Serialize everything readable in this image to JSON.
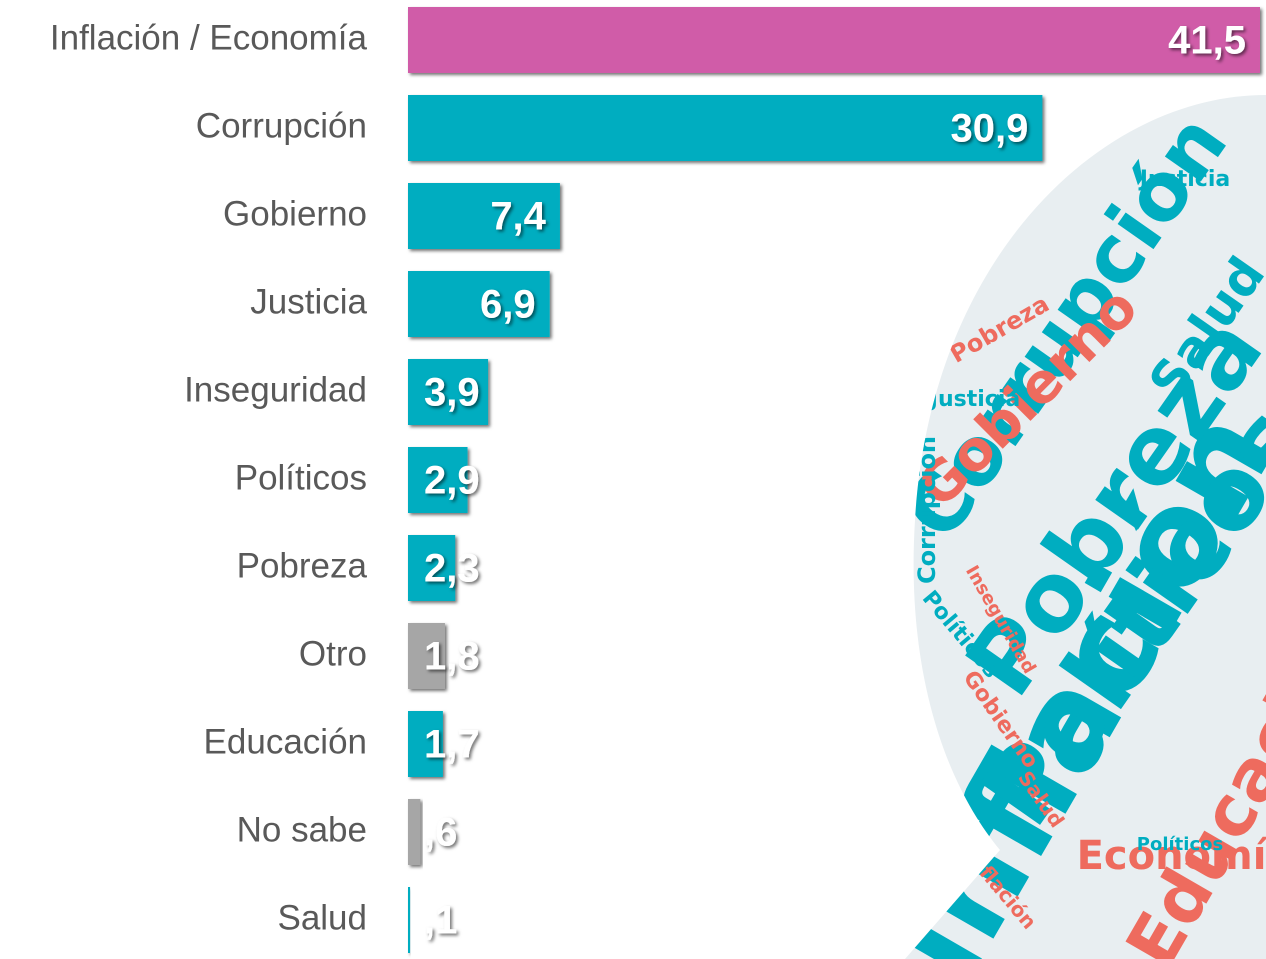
{
  "chart_data": {
    "type": "bar",
    "orientation": "horizontal",
    "categories": [
      "Inflación / Economía",
      "Corrupción",
      "Gobierno",
      "Justicia",
      "Inseguridad",
      "Políticos",
      "Pobreza",
      "Otro",
      "Educación",
      "No sabe",
      "Salud"
    ],
    "values": [
      41.5,
      30.9,
      7.4,
      6.9,
      3.9,
      2.9,
      2.3,
      1.8,
      1.7,
      0.6,
      0.1
    ],
    "value_labels": [
      "41,5",
      "30,9",
      "7,4",
      "6,9",
      "3,9",
      "2,9",
      "2,3",
      "1,8",
      "1,7",
      ",6",
      ",1"
    ],
    "colors": [
      "#d05ba8",
      "#00adc0",
      "#00adc0",
      "#00adc0",
      "#00adc0",
      "#00adc0",
      "#00adc0",
      "#a6a6a6",
      "#00adc0",
      "#a6a6a6",
      "#00adc0"
    ],
    "background_words": [
      "Inflación",
      "Corrupción",
      "Pobreza",
      "Políticos",
      "Gobierno",
      "Salud",
      "Justicia",
      "Economía",
      "Inseguridad",
      "Educación"
    ]
  }
}
